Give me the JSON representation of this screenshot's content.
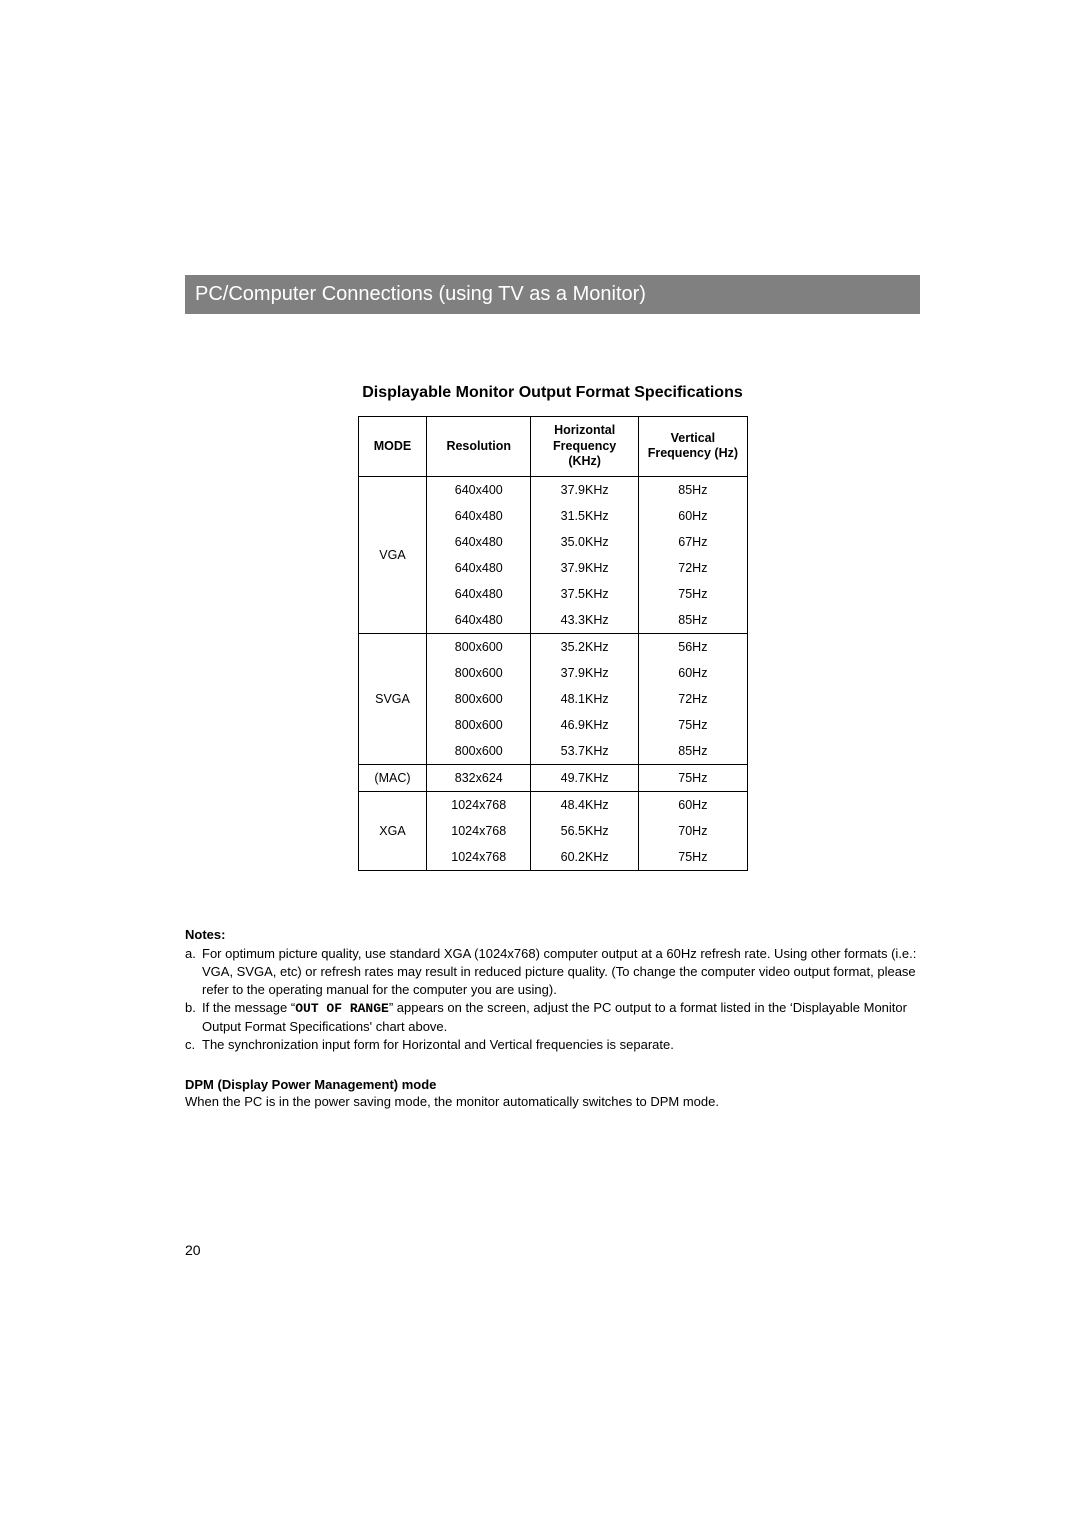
{
  "header": "PC/Computer Connections (using TV as a Monitor)",
  "table_title": "Displayable Monitor Output Format Specifications",
  "columns": {
    "mode": "MODE",
    "resolution": "Resolution",
    "hfreq_l1": "Horizontal",
    "hfreq_l2": "Frequency (KHz)",
    "vfreq_l1": "Vertical",
    "vfreq_l2": "Frequency (Hz)"
  },
  "groups": [
    {
      "mode": "VGA",
      "rows": [
        {
          "res": "640x400",
          "hf": "37.9KHz",
          "vf": "85Hz"
        },
        {
          "res": "640x480",
          "hf": "31.5KHz",
          "vf": "60Hz"
        },
        {
          "res": "640x480",
          "hf": "35.0KHz",
          "vf": "67Hz"
        },
        {
          "res": "640x480",
          "hf": "37.9KHz",
          "vf": "72Hz"
        },
        {
          "res": "640x480",
          "hf": "37.5KHz",
          "vf": "75Hz"
        },
        {
          "res": "640x480",
          "hf": "43.3KHz",
          "vf": "85Hz"
        }
      ]
    },
    {
      "mode": "SVGA",
      "rows": [
        {
          "res": "800x600",
          "hf": "35.2KHz",
          "vf": "56Hz"
        },
        {
          "res": "800x600",
          "hf": "37.9KHz",
          "vf": "60Hz"
        },
        {
          "res": "800x600",
          "hf": "48.1KHz",
          "vf": "72Hz"
        },
        {
          "res": "800x600",
          "hf": "46.9KHz",
          "vf": "75Hz"
        },
        {
          "res": "800x600",
          "hf": "53.7KHz",
          "vf": "85Hz"
        }
      ]
    },
    {
      "mode": "(MAC)",
      "rows": [
        {
          "res": "832x624",
          "hf": "49.7KHz",
          "vf": "75Hz"
        }
      ]
    },
    {
      "mode": "XGA",
      "rows": [
        {
          "res": "1024x768",
          "hf": "48.4KHz",
          "vf": "60Hz"
        },
        {
          "res": "1024x768",
          "hf": "56.5KHz",
          "vf": "70Hz"
        },
        {
          "res": "1024x768",
          "hf": "60.2KHz",
          "vf": "75Hz"
        }
      ]
    }
  ],
  "notes_heading": "Notes:",
  "notes": [
    {
      "letter": "a.",
      "pre": "For optimum picture quality, use standard XGA (1024x768) computer output at a 60Hz refresh rate. Using other formats (i.e.: VGA, SVGA, etc) or refresh rates may result in reduced picture quality. (To change the computer video output format, please refer to the operating manual for the computer you are using).",
      "strong": "",
      "post": ""
    },
    {
      "letter": "b.",
      "pre": "If the message “",
      "strong": "OUT OF RANGE",
      "post": "” appears on the screen, adjust the PC output to a format listed in the ‘Displayable Monitor Output Format Specifications' chart above."
    },
    {
      "letter": "c.",
      "pre": "The synchronization input form for Horizontal and Vertical frequencies is separate.",
      "strong": "",
      "post": ""
    }
  ],
  "dpm_heading": "DPM (Display Power Management) mode",
  "dpm_text": "When the PC is in the power saving mode, the monitor automatically switches to DPM mode.",
  "page_number": "20"
}
